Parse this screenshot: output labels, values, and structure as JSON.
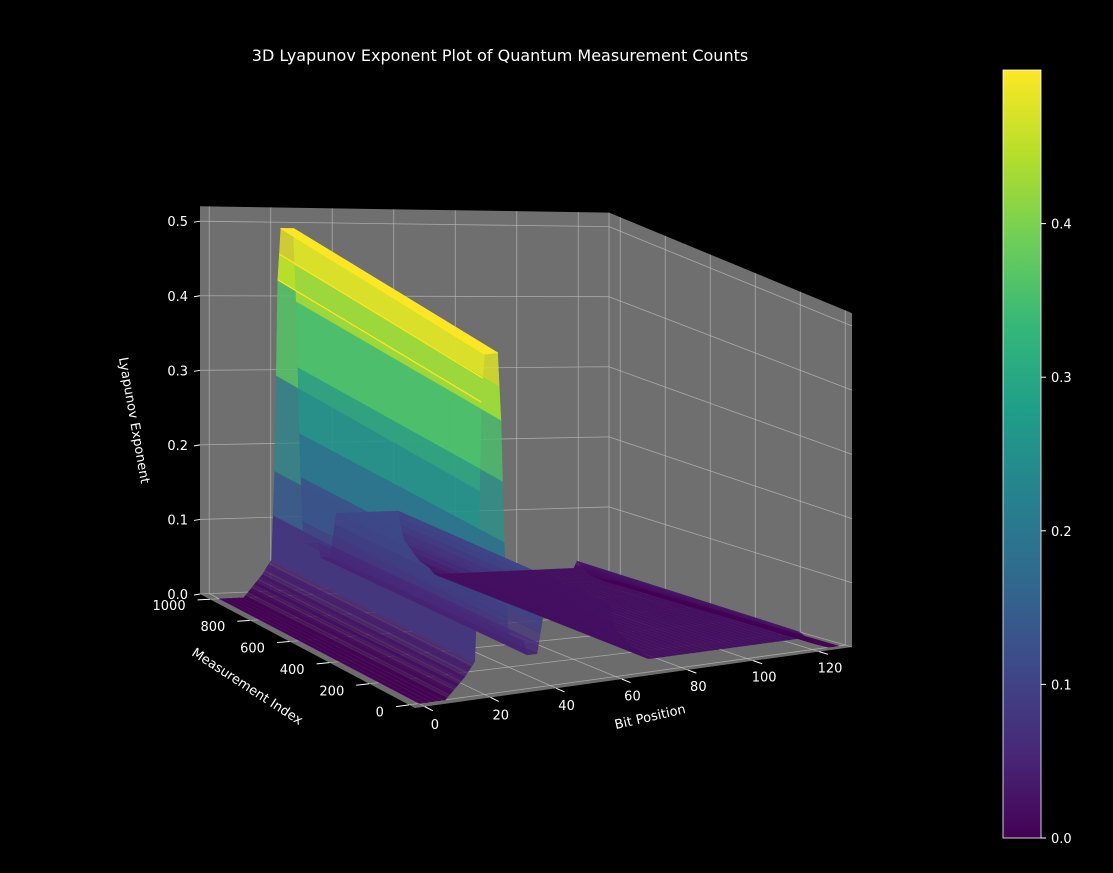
{
  "chart_data": {
    "type": "surface",
    "title": "3D Lyapunov Exponent Plot of Quantum Measurement Counts",
    "x_label": "Bit Position",
    "y_label": "Measurement Index",
    "z_label": "Lyapunov Exponent",
    "x_ticks": [
      "0",
      "20",
      "40",
      "60",
      "80",
      "100",
      "120"
    ],
    "y_ticks": [
      "0",
      "200",
      "400",
      "600",
      "800",
      "1000"
    ],
    "z_ticks": [
      "0.0",
      "0.1",
      "0.2",
      "0.3",
      "0.4",
      "0.5"
    ],
    "x_range": [
      -3,
      130
    ],
    "y_range": [
      -30,
      1050
    ],
    "z_range": [
      0,
      0.52
    ],
    "colormap": "viridis",
    "colorbar_ticks": [
      "0.0",
      "0.1",
      "0.2",
      "0.3",
      "0.4"
    ],
    "colorbar_range": [
      0,
      0.5
    ],
    "surface_profile": {
      "bit_position": [
        0,
        8,
        12,
        14,
        17,
        18,
        19,
        20,
        22,
        24,
        25,
        26,
        27,
        28,
        32,
        33,
        36,
        38,
        40,
        45,
        50,
        55,
        58,
        60,
        65,
        68,
        70,
        80,
        90,
        100,
        110,
        115,
        116,
        120,
        125,
        128
      ],
      "lyapunov_exponent": [
        0.0,
        0.0,
        0.02,
        0.03,
        0.05,
        0.17,
        0.43,
        0.5,
        0.5,
        0.5,
        0.4,
        0.22,
        0.1,
        0.07,
        0.07,
        0.05,
        0.05,
        0.11,
        0.11,
        0.11,
        0.11,
        0.11,
        0.11,
        0.07,
        0.04,
        0.03,
        0.02,
        0.02,
        0.02,
        0.02,
        0.02,
        0.02,
        0.03,
        0.01,
        0.0,
        0.0
      ]
    }
  },
  "colors": {
    "background": "#000000",
    "pane": "#757575",
    "grid": "#bdbdbd",
    "text": "#ffffff",
    "viridis": [
      "#440154",
      "#482878",
      "#3e4989",
      "#31688e",
      "#26828e",
      "#1f9e89",
      "#35b779",
      "#6ece58",
      "#b5de2b",
      "#fde725"
    ]
  }
}
